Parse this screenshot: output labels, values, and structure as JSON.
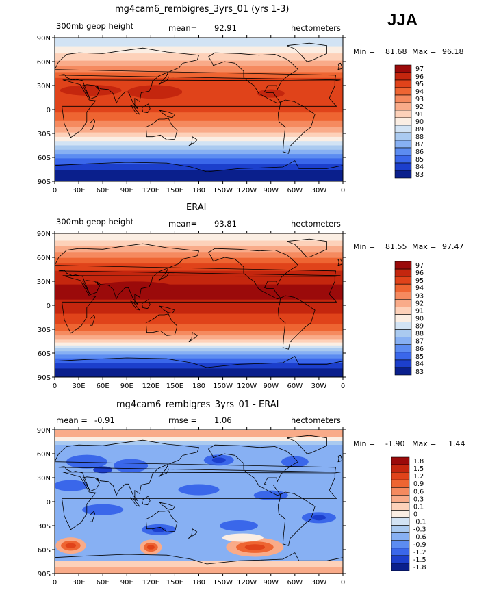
{
  "season": "JJA",
  "panels": [
    {
      "title": "mg4cam6_rembigres_3yrs_01 (yrs 1-3)",
      "left_label": "300mb geop height",
      "mean_label": "mean=",
      "mean_value": "92.91",
      "units": "hectometers",
      "min_label": "Min =",
      "min_value": "81.68",
      "max_label": "Max =",
      "max_value": "96.18",
      "levels": [
        "97",
        "96",
        "95",
        "94",
        "93",
        "92",
        "91",
        "90",
        "89",
        "88",
        "87",
        "86",
        "85",
        "84",
        "83"
      ],
      "colors": [
        "#9b0a0a",
        "#c4260e",
        "#e0431a",
        "#ee6532",
        "#f58a5f",
        "#f9ab89",
        "#fdd1b9",
        "#fbeee3",
        "#d2e3f4",
        "#aacaf0",
        "#87b0f3",
        "#5c8cf1",
        "#3a67ea",
        "#1c3fcc",
        "#0a1f8c"
      ]
    },
    {
      "title": "ERAI",
      "left_label": "300mb geop height",
      "mean_label": "mean=",
      "mean_value": "93.81",
      "units": "hectometers",
      "min_label": "Min =",
      "min_value": "81.55",
      "max_label": "Max =",
      "max_value": "97.47",
      "levels": [
        "97",
        "96",
        "95",
        "94",
        "93",
        "92",
        "91",
        "90",
        "89",
        "88",
        "87",
        "86",
        "85",
        "84",
        "83"
      ],
      "colors": [
        "#9b0a0a",
        "#c4260e",
        "#e0431a",
        "#ee6532",
        "#f58a5f",
        "#f9ab89",
        "#fdd1b9",
        "#fbeee3",
        "#d2e3f4",
        "#aacaf0",
        "#87b0f3",
        "#5c8cf1",
        "#3a67ea",
        "#1c3fcc",
        "#0a1f8c"
      ]
    },
    {
      "title": "mg4cam6_rembigres_3yrs_01 - ERAI",
      "left_label": "mean =",
      "mean_label": "rmse =",
      "left_value": "-0.91",
      "mean_value": "1.06",
      "units": "hectometers",
      "min_label": "Min =",
      "min_value": "-1.90",
      "max_label": "Max =",
      "max_value": "1.44",
      "levels": [
        "1.8",
        "1.5",
        "1.2",
        "0.9",
        "0.6",
        "0.3",
        "0.1",
        "0",
        "-0.1",
        "-0.3",
        "-0.6",
        "-0.9",
        "-1.2",
        "-1.5",
        "-1.8"
      ],
      "colors": [
        "#9b0a0a",
        "#c4260e",
        "#e0431a",
        "#ee6532",
        "#f58a5f",
        "#f9ab89",
        "#fdd1b9",
        "#fbeee3",
        "#d2e3f4",
        "#aacaf0",
        "#87b0f3",
        "#5c8cf1",
        "#3a67ea",
        "#1c3fcc",
        "#0a1f8c"
      ]
    }
  ],
  "lon_ticks": [
    "0",
    "30E",
    "60E",
    "90E",
    "120E",
    "150E",
    "180",
    "150W",
    "120W",
    "90W",
    "60W",
    "30W",
    "0"
  ],
  "lat_ticks": [
    "90N",
    "60N",
    "30N",
    "0",
    "30S",
    "60S",
    "90S"
  ]
}
